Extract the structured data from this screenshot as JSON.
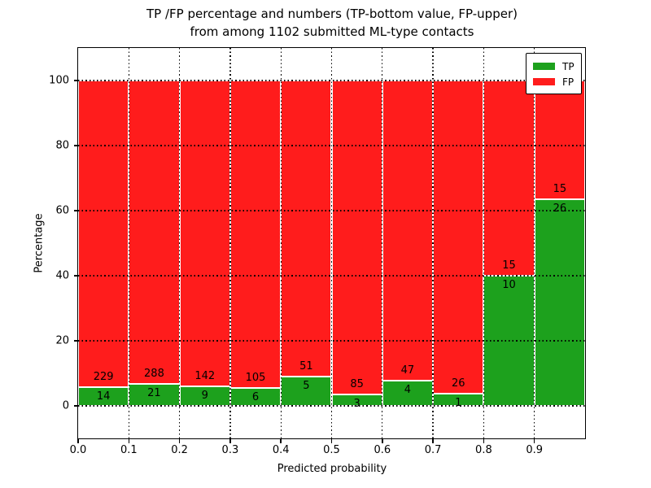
{
  "chart_data": {
    "type": "bar",
    "stacked": true,
    "title_line1": "TP /FP percentage and numbers (TP-bottom value, FP-upper)",
    "title_line2": "from among 1102 submitted ML-type contacts",
    "xlabel": "Predicted probability",
    "ylabel": "Percentage",
    "total_contacts": 1102,
    "x_tick_labels": [
      "0.0",
      "0.1",
      "0.2",
      "0.3",
      "0.4",
      "0.5",
      "0.6",
      "0.7",
      "0.8",
      "0.9"
    ],
    "y_tick_values": [
      0,
      20,
      40,
      60,
      80,
      100
    ],
    "xlim": [
      0,
      1
    ],
    "ylim": [
      -10,
      110
    ],
    "grid": "dotted-black",
    "legend_position": "upper-right",
    "series": [
      {
        "name": "TP",
        "color": "#1da11d"
      },
      {
        "name": "FP",
        "color": "#ff1c1c"
      }
    ],
    "bins": [
      {
        "x0": 0.0,
        "x1": 0.1,
        "tp": 14,
        "fp": 229
      },
      {
        "x0": 0.1,
        "x1": 0.2,
        "tp": 21,
        "fp": 288
      },
      {
        "x0": 0.2,
        "x1": 0.3,
        "tp": 9,
        "fp": 142
      },
      {
        "x0": 0.3,
        "x1": 0.4,
        "tp": 6,
        "fp": 105
      },
      {
        "x0": 0.4,
        "x1": 0.5,
        "tp": 5,
        "fp": 51
      },
      {
        "x0": 0.5,
        "x1": 0.6,
        "tp": 3,
        "fp": 85
      },
      {
        "x0": 0.6,
        "x1": 0.7,
        "tp": 4,
        "fp": 47
      },
      {
        "x0": 0.7,
        "x1": 0.8,
        "tp": 1,
        "fp": 26
      },
      {
        "x0": 0.8,
        "x1": 0.9,
        "tp": 10,
        "fp": 15
      },
      {
        "x0": 0.9,
        "x1": 1.0,
        "tp": 26,
        "fp": 15
      }
    ]
  }
}
